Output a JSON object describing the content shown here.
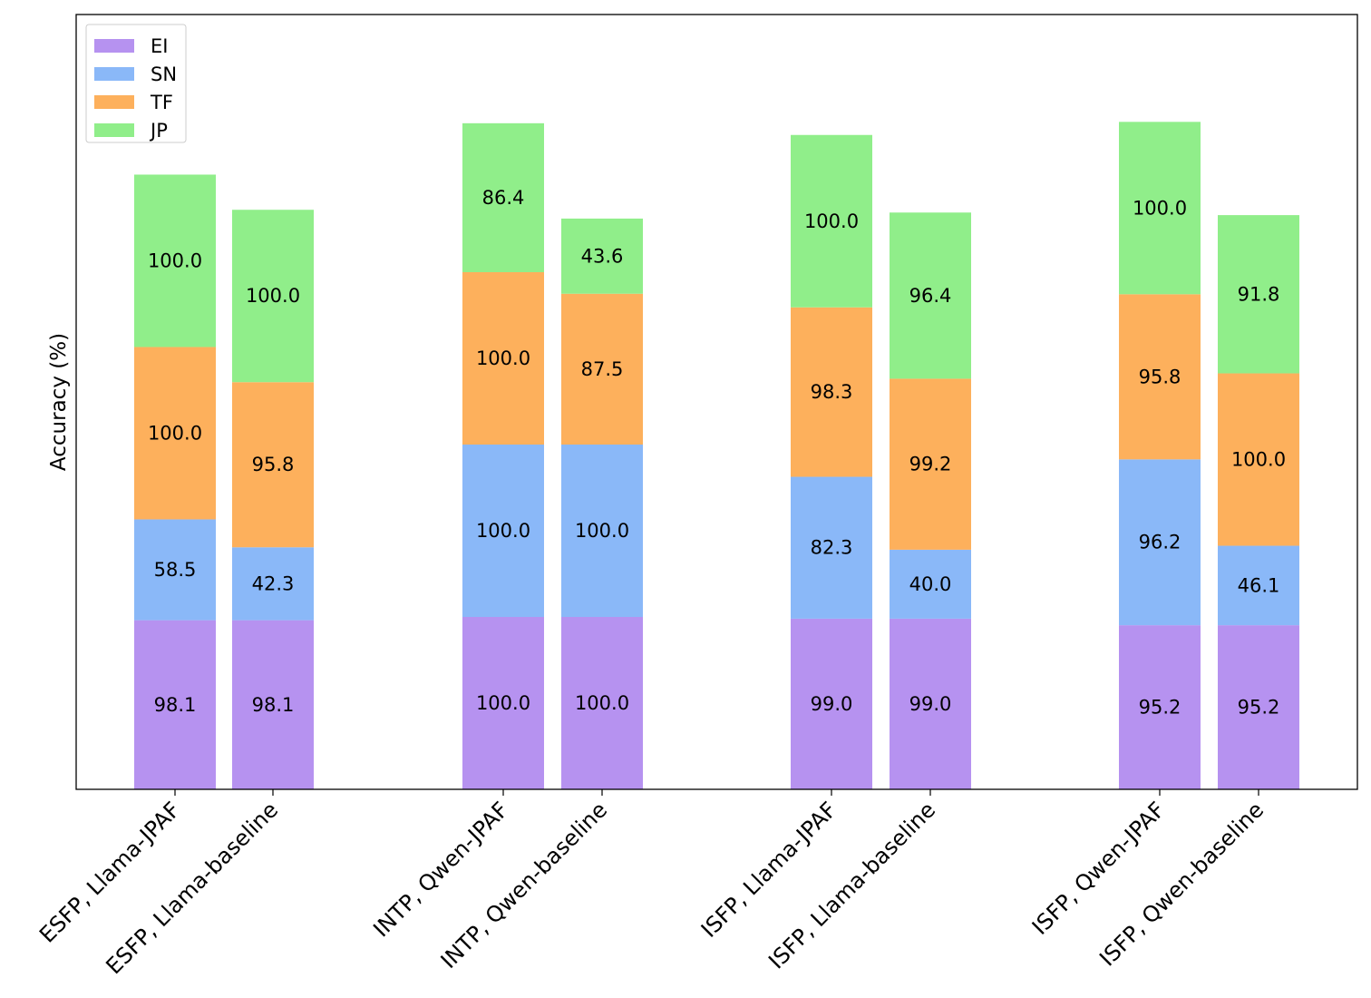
{
  "chart_data": {
    "type": "bar",
    "stacked": true,
    "categories": [
      "ESFP, Llama-JPAF",
      "ESFP, Llama-baseline",
      "INTP, Qwen-JPAF",
      "INTP, Qwen-baseline",
      "ISFP, Llama-JPAF",
      "ISFP, Llama-baseline",
      "ISFP, Qwen-JPAF",
      "ISFP, Qwen-baseline"
    ],
    "series": [
      {
        "name": "EI",
        "color": "#b692f0",
        "values": [
          98.1,
          98.1,
          100.0,
          100.0,
          99.0,
          99.0,
          95.2,
          95.2
        ]
      },
      {
        "name": "SN",
        "color": "#8ab8f8",
        "values": [
          58.5,
          42.3,
          100.0,
          100.0,
          82.3,
          40.0,
          96.2,
          46.1
        ]
      },
      {
        "name": "TF",
        "color": "#fdb05c",
        "values": [
          100.0,
          95.8,
          100.0,
          87.5,
          98.3,
          99.2,
          95.8,
          100.0
        ]
      },
      {
        "name": "JP",
        "color": "#90ee8a",
        "values": [
          100.0,
          100.0,
          86.4,
          43.6,
          100.0,
          96.4,
          100.0,
          91.8
        ]
      }
    ],
    "title": "",
    "xlabel": "",
    "ylabel": "Accuracy (%)",
    "ylim": [
      0,
      450
    ],
    "yticks_visible": false,
    "grid": false,
    "legend_position": "top-left"
  }
}
